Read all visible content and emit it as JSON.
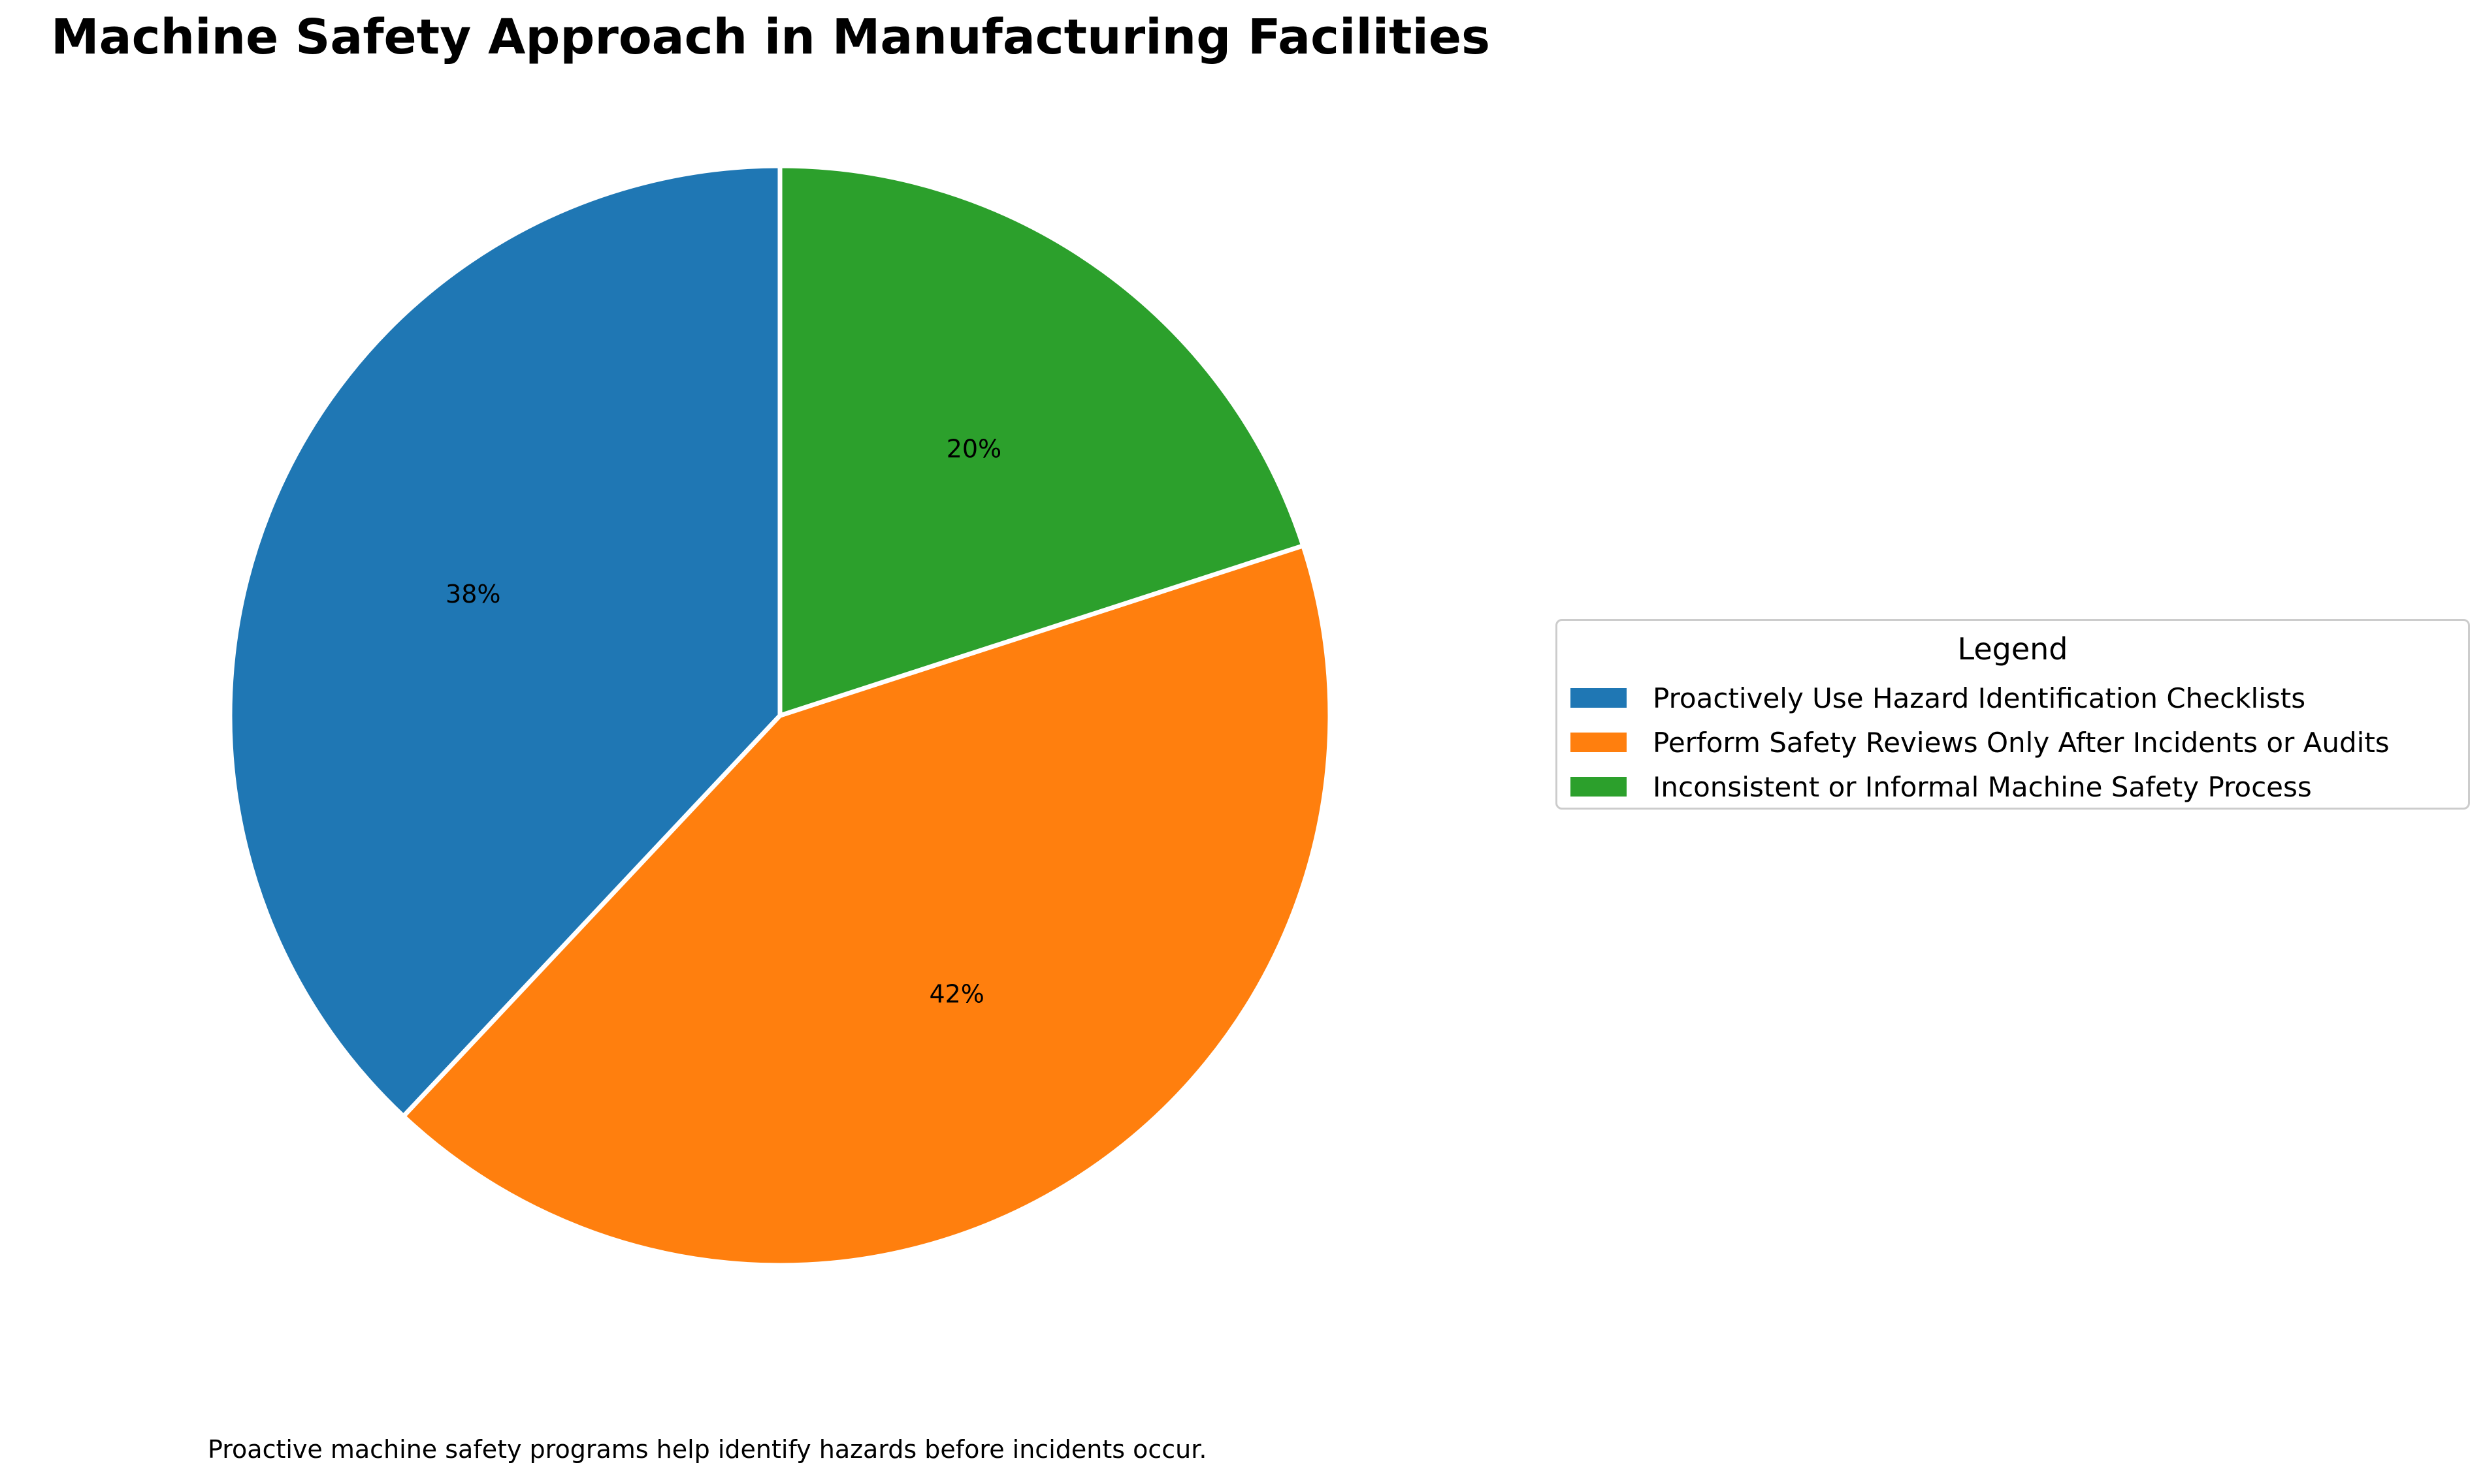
{
  "chart_data": {
    "type": "pie",
    "title": "Machine Safety Approach in Manufacturing Facilities",
    "categories": [
      "Proactively Use Hazard Identification Checklists",
      "Perform Safety Reviews Only After Incidents or Audits",
      "Inconsistent or Informal Machine Safety Process"
    ],
    "values": [
      38,
      42,
      20
    ],
    "value_labels": [
      "38%",
      "42%",
      "20%"
    ],
    "colors": [
      "#1f77b4",
      "#ff7f0e",
      "#2ca02c"
    ],
    "start_angle_deg": 90,
    "direction": "counterclockwise",
    "legend": {
      "title": "Legend",
      "placement": "right-center"
    },
    "footnote": "Proactive machine safety programs help identify hazards before incidents occur."
  }
}
